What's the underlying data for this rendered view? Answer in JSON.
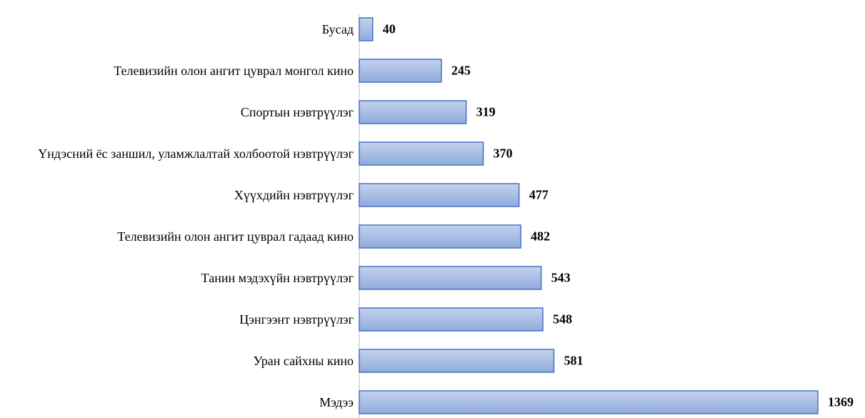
{
  "chart_data": {
    "type": "bar",
    "orientation": "horizontal",
    "categories": [
      "Бусад",
      "Телевизийн олон ангит цуврал монгол кино",
      "Спортын нэвтрүүлэг",
      "Үндэсний ёс заншил, уламжлалтай холбоотой нэвтрүүлэг",
      "Хүүхдийн нэвтрүүлэг",
      "Телевизийн олон ангит цуврал гадаад кино",
      "Танин мэдэхүйн нэвтрүүлэг",
      "Цэнгээнт нэвтрүүлэг",
      "Уран сайхны кино",
      "Мэдээ"
    ],
    "values": [
      40,
      245,
      319,
      370,
      477,
      482,
      543,
      548,
      581,
      1369
    ],
    "color": "#8faadc"
  }
}
